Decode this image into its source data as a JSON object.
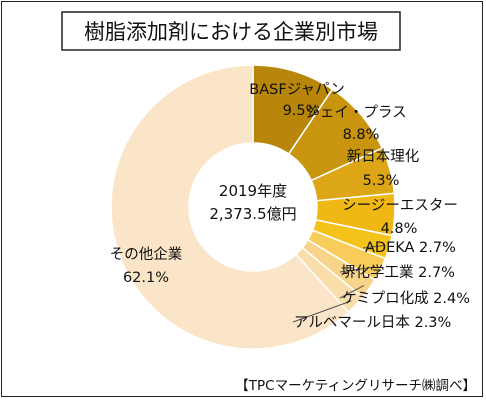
{
  "chart_data": {
    "type": "pie",
    "title": "樹脂添加剤における企業別市場",
    "center_label": [
      "2019年度",
      "2,373.5億円"
    ],
    "source": "【TPCマーケティングリサーチ㈱調べ】",
    "slices": [
      {
        "name": "BASFジャパン",
        "value": 9.5,
        "value_label": "9.5%",
        "color": "#b8860b"
      },
      {
        "name": "ジェイ・プラス",
        "value": 8.8,
        "value_label": "8.8%",
        "color": "#c9950e"
      },
      {
        "name": "新日本理化",
        "value": 5.3,
        "value_label": "5.3%",
        "color": "#dca616"
      },
      {
        "name": "シージーエスター",
        "value": 4.8,
        "value_label": "4.8%",
        "color": "#efb814"
      },
      {
        "name": "ADEKA",
        "value": 2.7,
        "value_label": "2.7%",
        "color": "#f5c21b"
      },
      {
        "name": "堺化学工業",
        "value": 2.7,
        "value_label": "2.7%",
        "color": "#f7cc5a"
      },
      {
        "name": "ケミプロ化成",
        "value": 2.4,
        "value_label": "2.4%",
        "color": "#f8d48a"
      },
      {
        "name": "アルベマール日本",
        "value": 2.3,
        "value_label": "2.3%",
        "color": "#f9ddab"
      },
      {
        "name": "その他企業",
        "value": 62.1,
        "value_label": "62.1%",
        "color": "#fbe5c8"
      }
    ]
  }
}
